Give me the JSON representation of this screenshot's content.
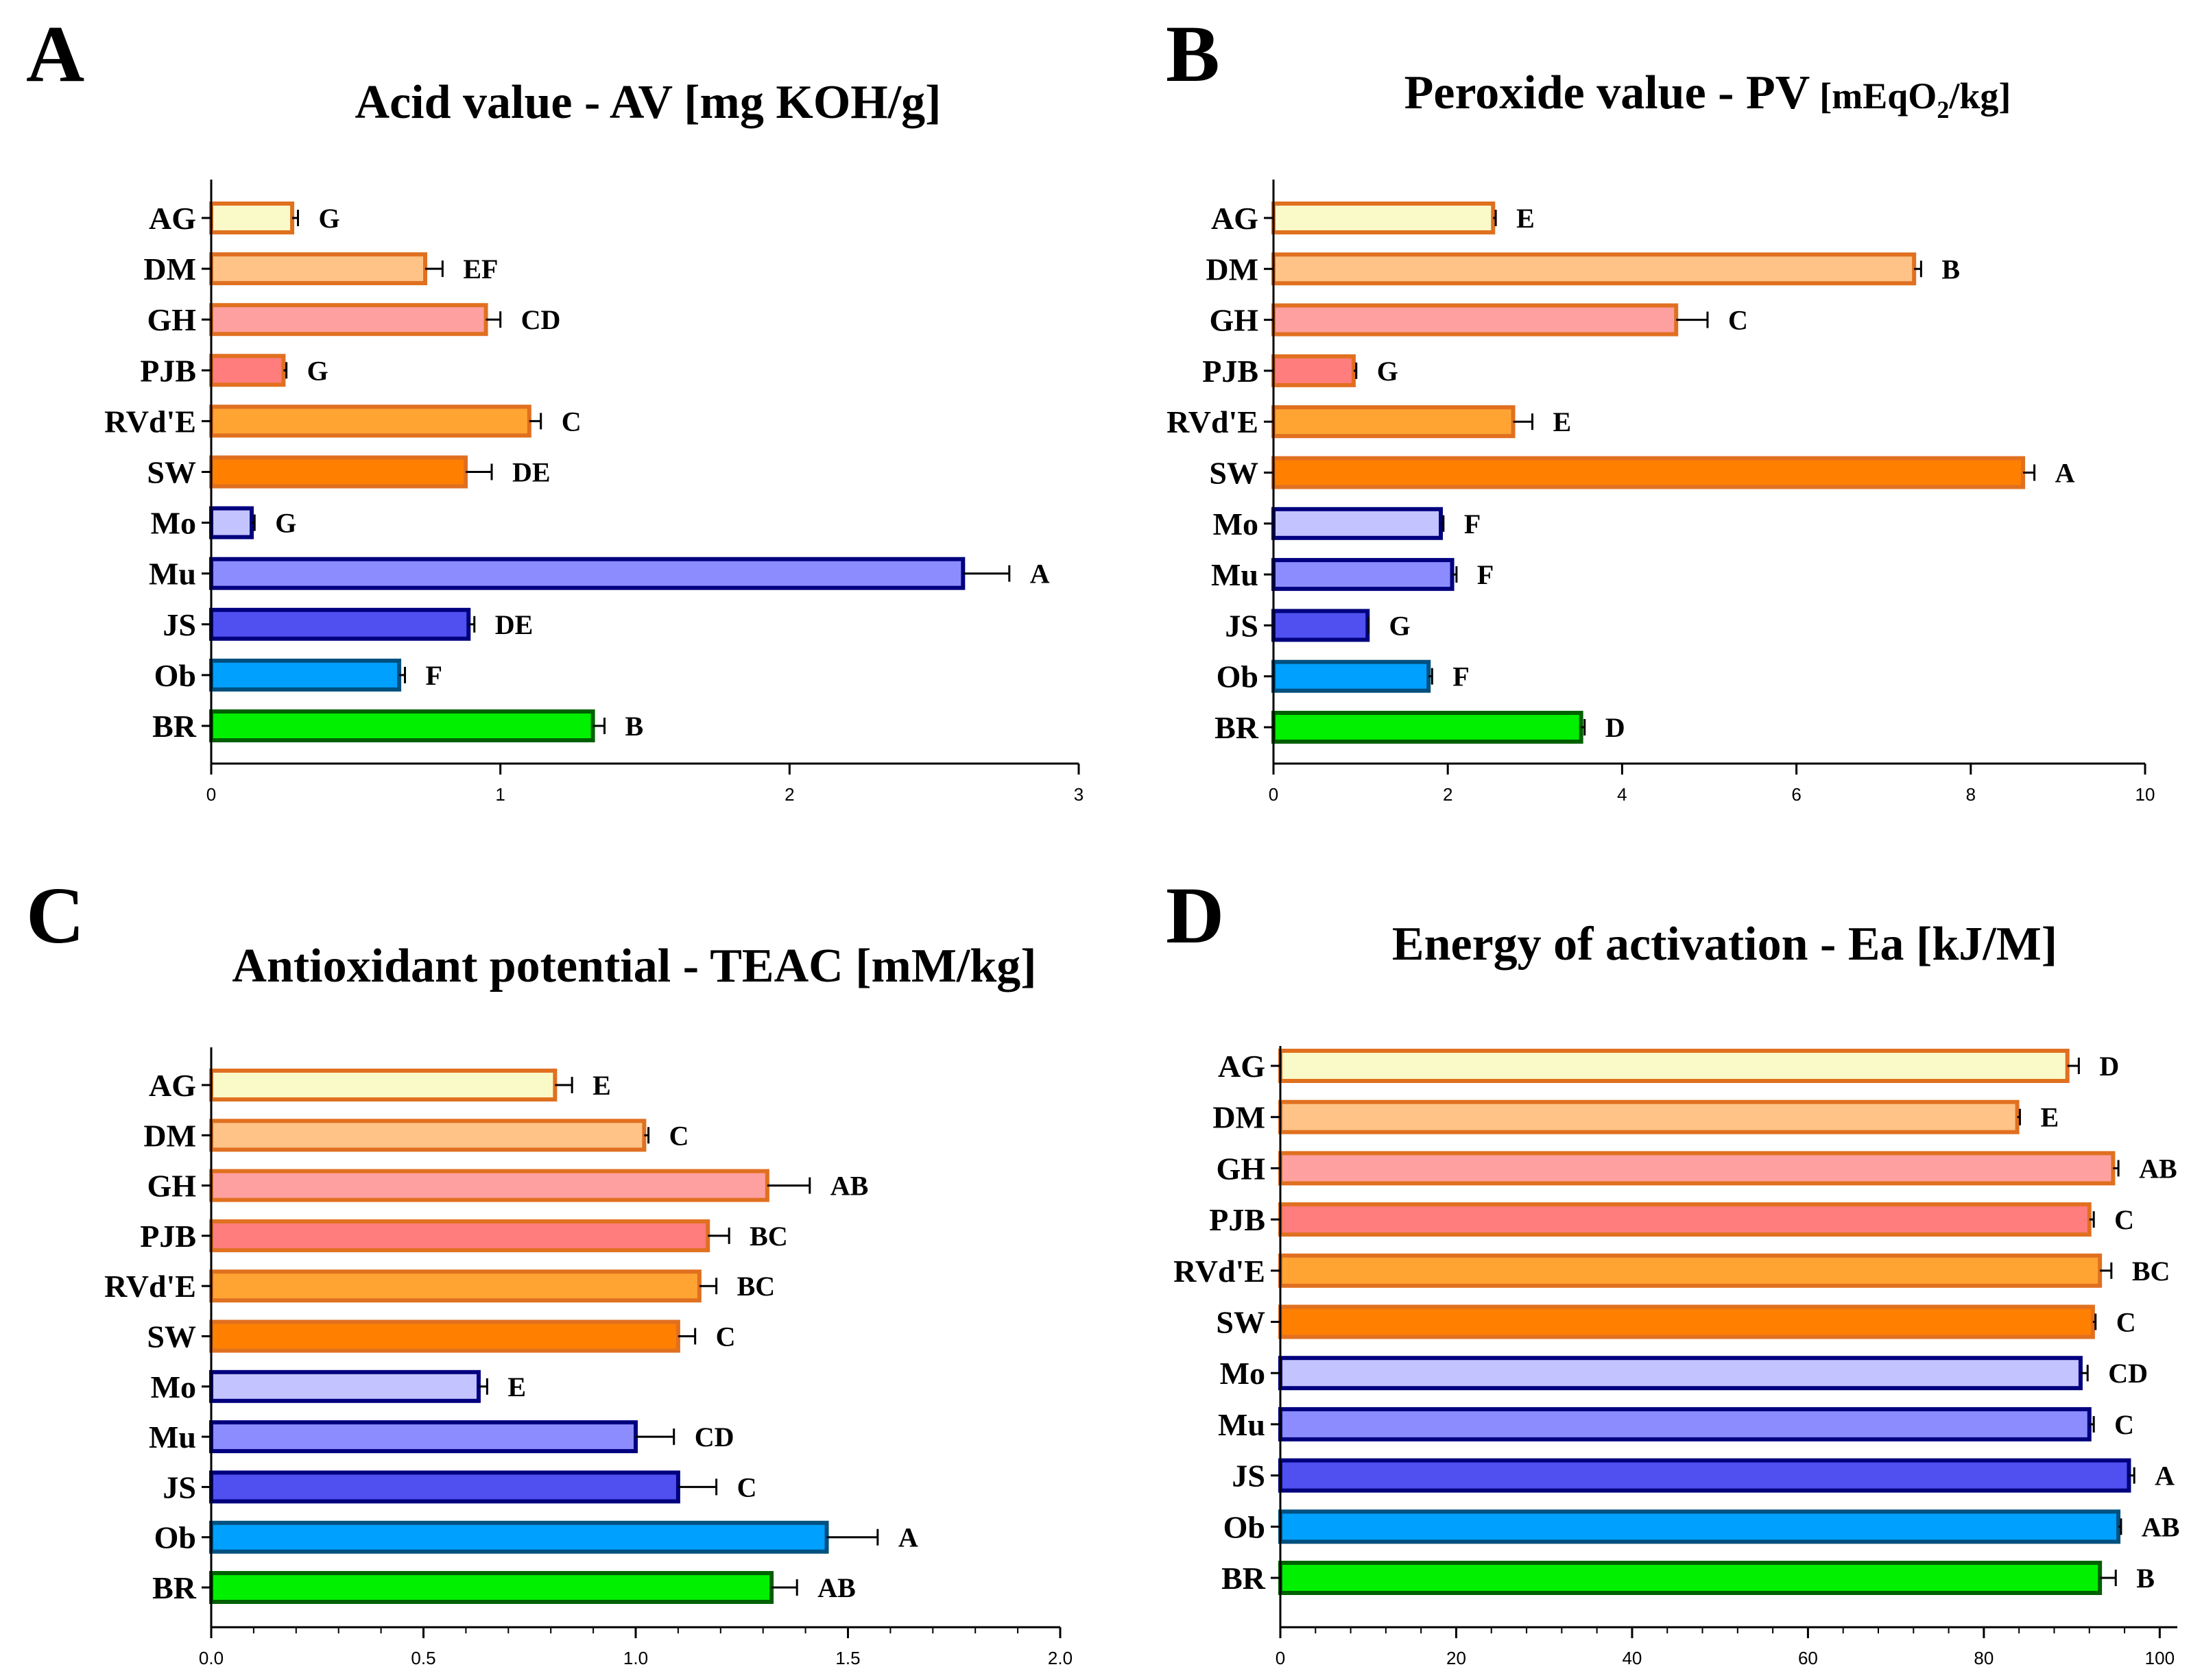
{
  "figure": {
    "categories": [
      "AG",
      "DM",
      "GH",
      "PJB",
      "RVd'E",
      "SW",
      "Mo",
      "Mu",
      "JS",
      "Ob",
      "BR"
    ],
    "bar_fill_colors": [
      "#fafac8",
      "#ffc387",
      "#ffa0a0",
      "#ff7d7d",
      "#ffa433",
      "#ff8000",
      "#c3c3ff",
      "#8c8cff",
      "#5050f0",
      "#00a0ff",
      "#00f000"
    ],
    "bar_stroke_colors": [
      "#e07020",
      "#e07020",
      "#e07020",
      "#e07020",
      "#e07020",
      "#e07020",
      "#00007f",
      "#00007f",
      "#00007f",
      "#00507f",
      "#006000"
    ]
  },
  "chart_data": [
    {
      "panel": "A",
      "type": "bar",
      "orientation": "horizontal",
      "title": "Acid value - AV [mg KOH/g]",
      "xlim": [
        0,
        3
      ],
      "ticks": [
        "0",
        "1",
        "2",
        "3"
      ],
      "tick_values": [
        0,
        1,
        2,
        3
      ],
      "values": [
        0.28,
        0.74,
        0.95,
        0.25,
        1.1,
        0.88,
        0.14,
        2.6,
        0.89,
        0.65,
        1.32
      ],
      "errors": [
        0.02,
        0.06,
        0.05,
        0.01,
        0.04,
        0.09,
        0.01,
        0.16,
        0.02,
        0.02,
        0.04
      ],
      "significance": [
        "G",
        "EF",
        "CD",
        "G",
        "C",
        "DE",
        "G",
        "A",
        "DE",
        "F",
        "B"
      ]
    },
    {
      "panel": "B",
      "type": "bar",
      "orientation": "horizontal",
      "title": "Peroxide value - PV",
      "title_unit_pre": "[mEqO",
      "title_unit_sub": "2",
      "title_unit_post": "/kg]",
      "xlim": [
        0,
        10
      ],
      "ticks": [
        "0",
        "2",
        "4",
        "6",
        "8",
        "10"
      ],
      "tick_values": [
        0,
        2,
        4,
        6,
        8,
        10
      ],
      "values": [
        2.52,
        7.35,
        4.62,
        0.92,
        2.75,
        8.6,
        1.92,
        2.05,
        1.08,
        1.78,
        3.53
      ],
      "errors": [
        0.03,
        0.08,
        0.36,
        0.03,
        0.22,
        0.13,
        0.03,
        0.05,
        0.01,
        0.04,
        0.04
      ],
      "significance": [
        "E",
        "B",
        "C",
        "G",
        "E",
        "A",
        "F",
        "F",
        "G",
        "F",
        "D"
      ]
    },
    {
      "panel": "C",
      "type": "bar",
      "orientation": "horizontal",
      "title": "Antioxidant potential - TEAC [mM/kg]",
      "xlim": [
        0,
        2
      ],
      "ticks": [
        "0.0",
        "0.5",
        "1.0",
        "1.5",
        "2.0"
      ],
      "tick_values": [
        0,
        0.5,
        1,
        1.5,
        2
      ],
      "values": [
        0.81,
        1.02,
        1.31,
        1.17,
        1.15,
        1.1,
        0.63,
        1.0,
        1.1,
        1.45,
        1.32
      ],
      "errors": [
        0.04,
        0.01,
        0.1,
        0.05,
        0.04,
        0.04,
        0.02,
        0.09,
        0.09,
        0.12,
        0.06
      ],
      "significance": [
        "E",
        "C",
        "AB",
        "BC",
        "BC",
        "C",
        "E",
        "CD",
        "C",
        "A",
        "AB"
      ]
    },
    {
      "panel": "D",
      "type": "bar",
      "orientation": "horizontal",
      "title": "Energy of activation - Ea [kJ/M]",
      "xlim": [
        0,
        102
      ],
      "ticks": [
        "0",
        "20",
        "40",
        "60",
        "80",
        "100"
      ],
      "tick_values": [
        0,
        20,
        40,
        60,
        80,
        100
      ],
      "values": [
        89.5,
        83.8,
        94.7,
        92.0,
        93.2,
        92.4,
        91.0,
        92.0,
        96.5,
        95.3,
        93.2
      ],
      "errors": [
        1.3,
        0.3,
        0.6,
        0.5,
        1.3,
        0.3,
        0.8,
        0.5,
        0.6,
        0.3,
        1.8
      ],
      "significance": [
        "D",
        "E",
        "AB",
        "C",
        "BC",
        "C",
        "CD",
        "C",
        "A",
        "AB",
        "B"
      ]
    }
  ]
}
